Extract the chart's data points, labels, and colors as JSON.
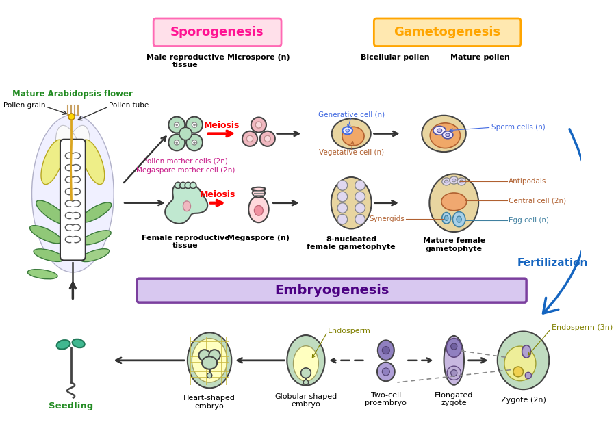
{
  "sporogenesis_label": "Sporogenesis",
  "gametogenesis_label": "Gametogenesis",
  "embryogenesis_label": "Embryogenesis",
  "fertilization_label": "Fertilization",
  "sporogenesis_box_color": "#FFE0EA",
  "sporogenesis_border_color": "#FF69B4",
  "sporogenesis_text_color": "#FF1493",
  "gametogenesis_box_color": "#FFE8B0",
  "gametogenesis_border_color": "#FFA500",
  "gametogenesis_text_color": "#FFA500",
  "embryogenesis_box_color": "#D8C8F0",
  "embryogenesis_border_color": "#7B3F9E",
  "embryogenesis_text_color": "#4B0082",
  "meiosis_color": "#FF0000",
  "fertilization_arrow_color": "#1565C0",
  "fertilization_text_color": "#1565C0",
  "flower_label_color": "#228B22",
  "seedling_label_color": "#228B22",
  "bg_color": "#FFFFFF",
  "tan_cell": "#E8D5A0",
  "green_cell": "#B8E0C8",
  "pink_cell": "#F0C0C8",
  "lavender_cell": "#C8B8E0",
  "blue_cell": "#90C8E0",
  "orange_cell": "#F0A868",
  "yellow_cell": "#F0E888"
}
